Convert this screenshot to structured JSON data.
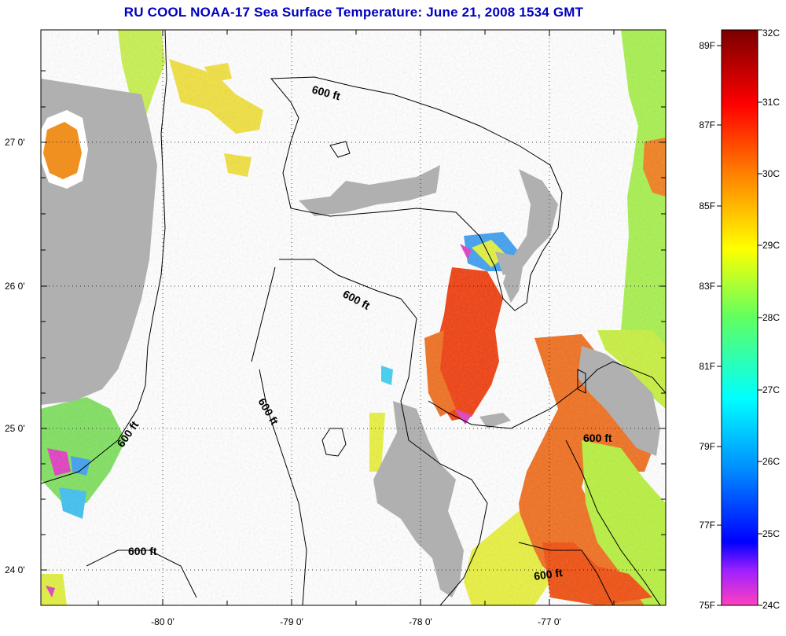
{
  "title": "RU COOL  NOAA-17  Sea Surface Temperature:  June 21, 2008 1534 GMT",
  "map": {
    "lat_ticks": [
      "27 0'",
      "26 0'",
      "25 0'",
      "24 0'"
    ],
    "lon_ticks": [
      "-80 0'",
      "-79 0'",
      "-78 0'",
      "-77 0'"
    ],
    "contour_label": "600 ft",
    "land_color": "#b0b0b0",
    "water_color": "#ffffff"
  },
  "colorbar": {
    "fahrenheit": [
      "89F",
      "87F",
      "85F",
      "83F",
      "81F",
      "79F",
      "77F",
      "75F"
    ],
    "celsius": [
      "32C",
      "31C",
      "30C",
      "29C",
      "28C",
      "27C",
      "26C",
      "25C",
      "24C"
    ]
  }
}
